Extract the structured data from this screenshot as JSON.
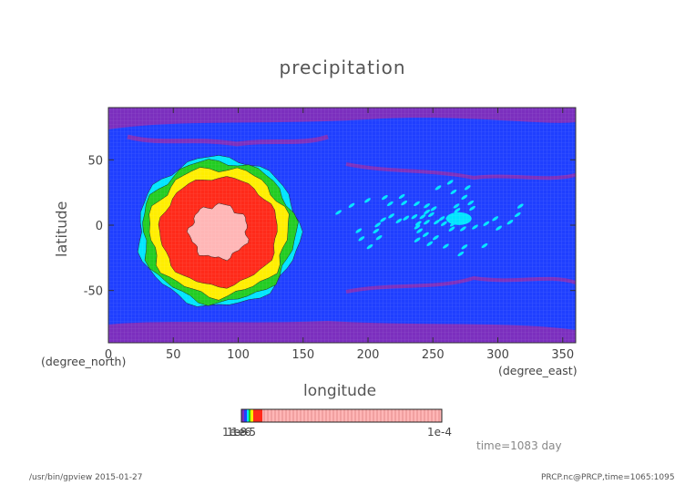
{
  "chart_data": {
    "type": "heatmap",
    "title": "precipitation",
    "xlabel": "longitude",
    "ylabel": "latitude",
    "x_unit": "(degree_east)",
    "y_unit": "(degree_north)",
    "xlim": [
      0,
      360
    ],
    "ylim": [
      -90,
      90
    ],
    "x_ticks": [
      0,
      50,
      100,
      150,
      200,
      250,
      300,
      350
    ],
    "y_ticks": [
      50,
      0,
      -50
    ],
    "grid": true,
    "colorbar": {
      "tick_labels": [
        "1e-8",
        "1e-6",
        "1e-5",
        "1e-4"
      ],
      "left_label": "1e-8",
      "right_label": "1e-4"
    },
    "time_label": "time=1083 day",
    "footer_left": "/usr/bin/gpview  2015-01-27",
    "footer_right": "PRCP.nc@PRCP,time=1065:1095",
    "features": [
      {
        "name": "ring",
        "center_lon": 85,
        "center_lat": -5,
        "radius_deg": 62
      },
      {
        "name": "east-disturbance",
        "center_lon": 270,
        "center_lat": 5
      }
    ]
  }
}
